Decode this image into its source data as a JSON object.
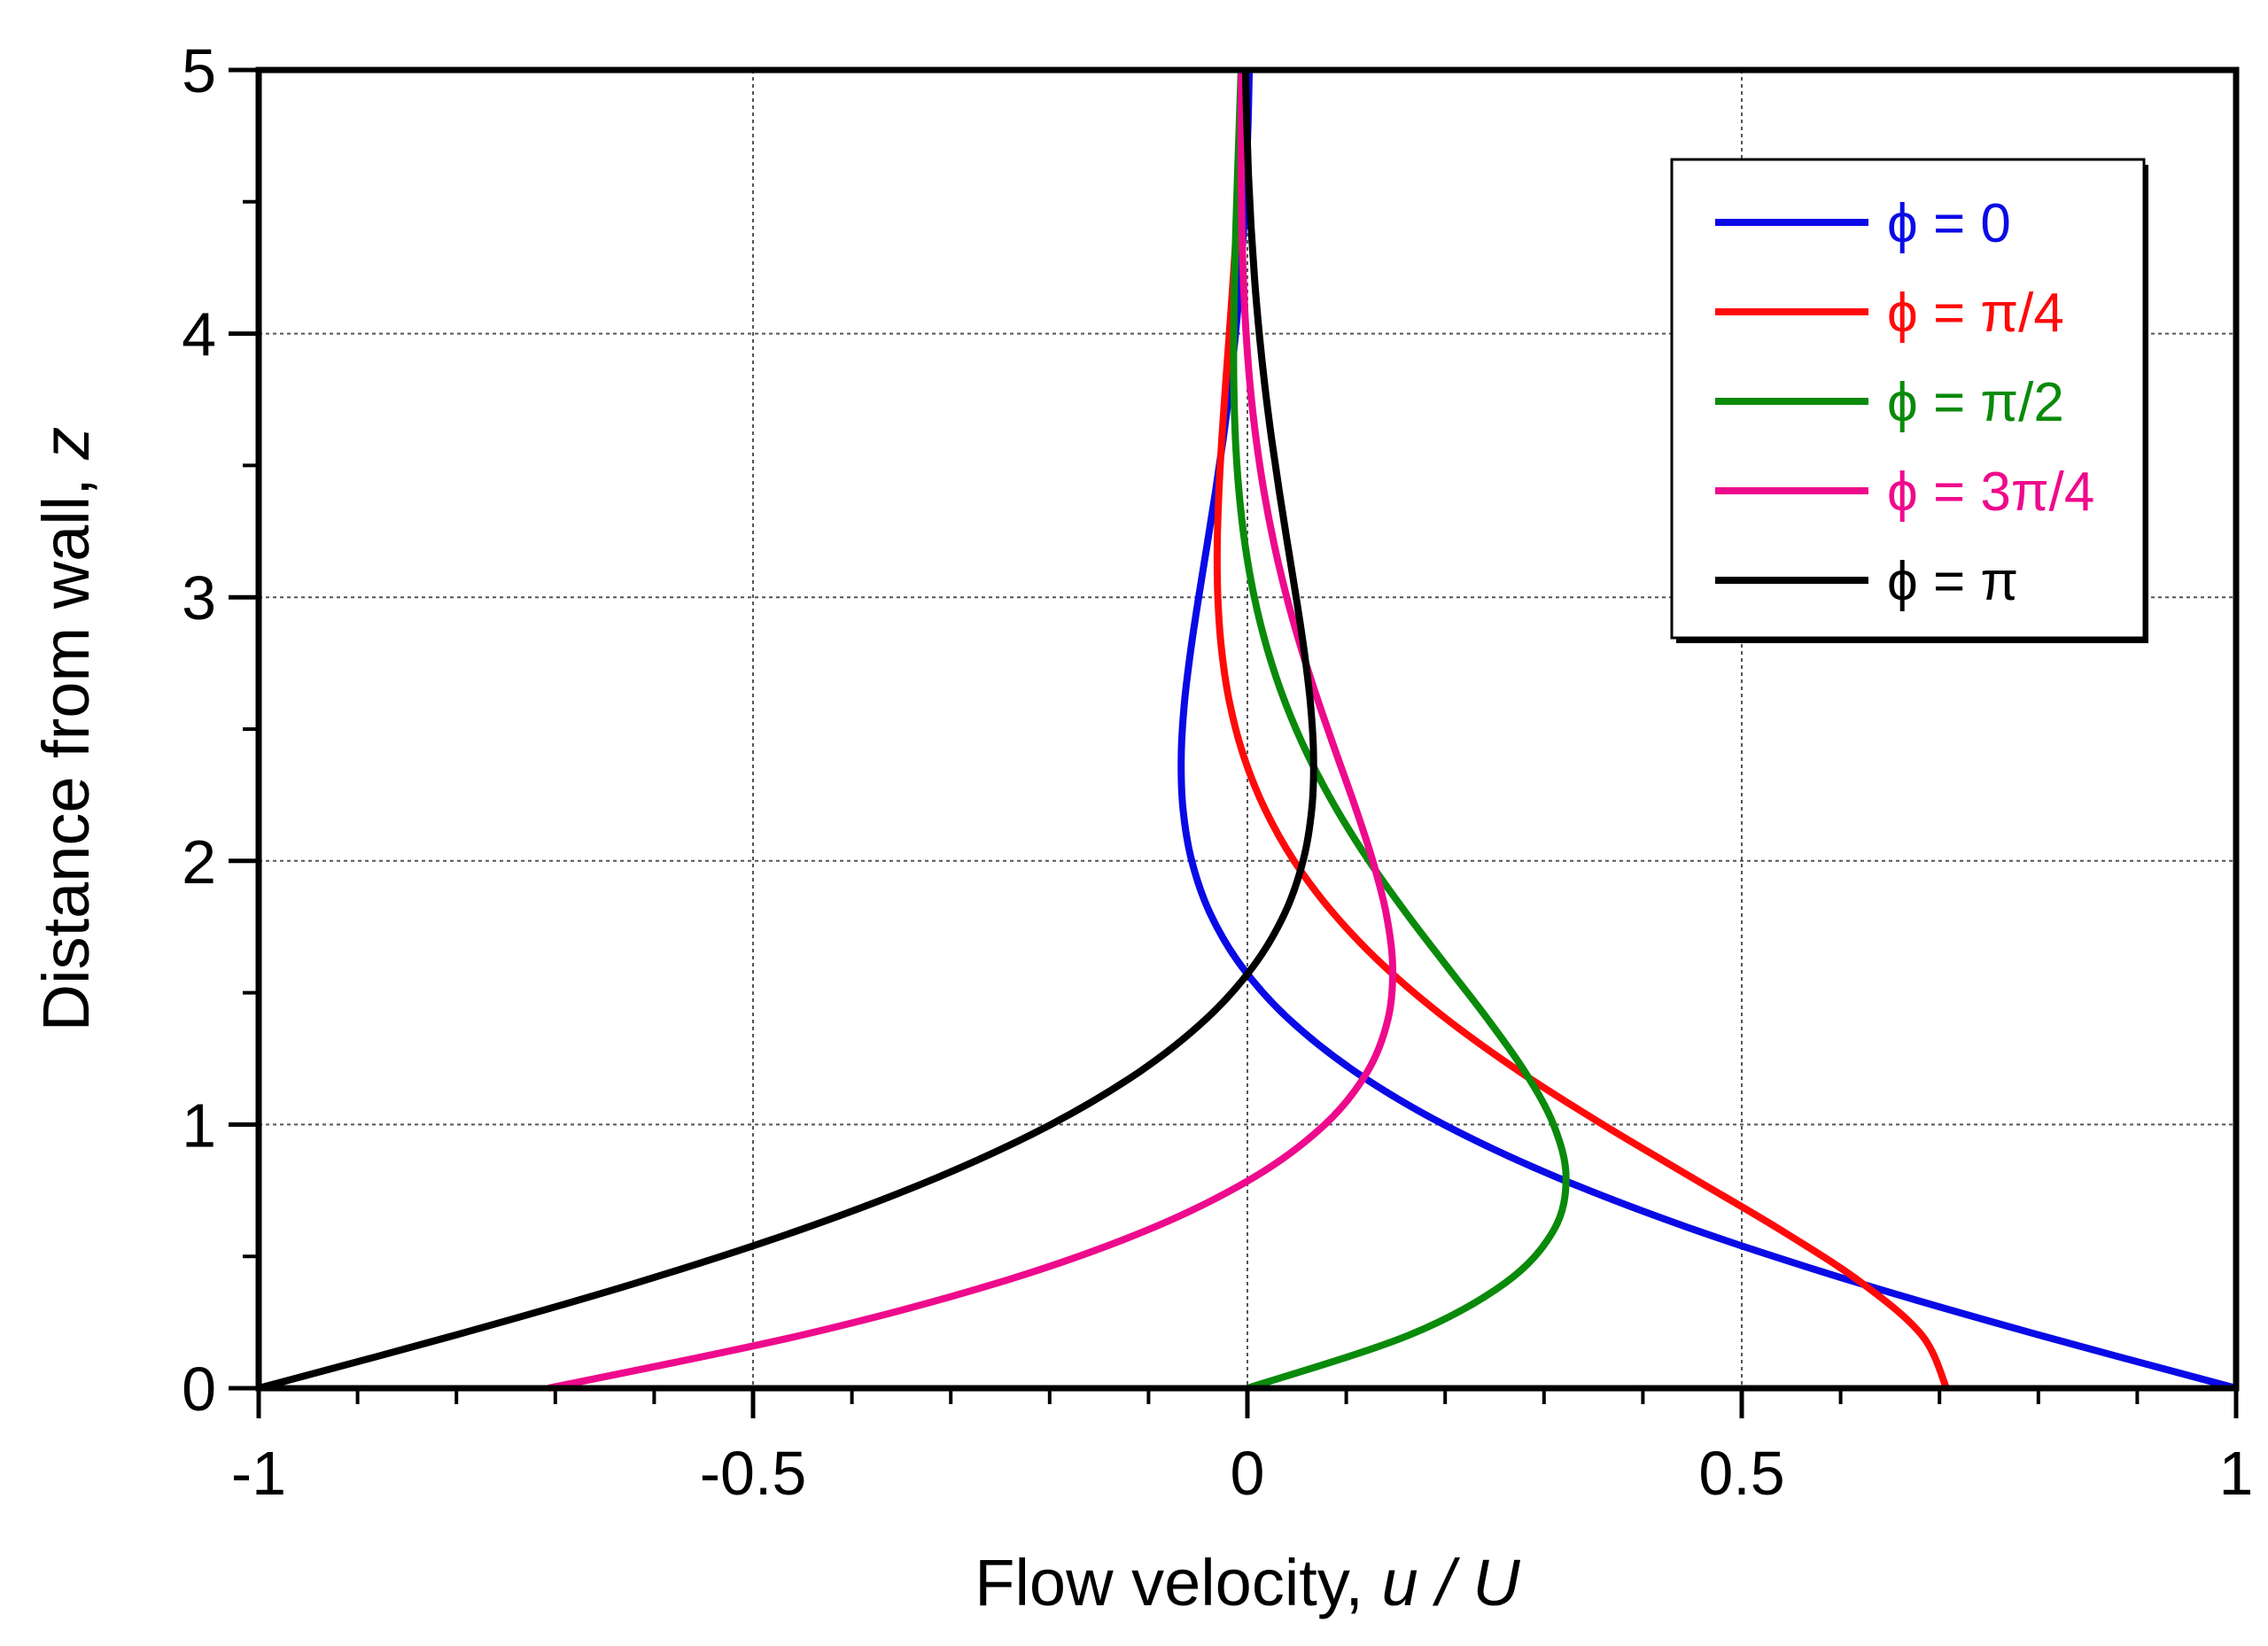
{
  "chart_data": {
    "type": "line",
    "title": "",
    "xlabel": "Flow velocity, ",
    "xlabel_italic": "u / U",
    "ylabel": "Distance from wall, ",
    "ylabel_italic": "z",
    "xlim": [
      -1,
      1
    ],
    "ylim": [
      0,
      5
    ],
    "xticks": [
      -1,
      -0.5,
      0,
      0.5,
      1
    ],
    "xtick_labels": [
      "-1",
      "-0.5",
      "0",
      "0.5",
      "1"
    ],
    "yticks": [
      0,
      1,
      2,
      3,
      4,
      5
    ],
    "ytick_labels": [
      "0",
      "1",
      "2",
      "3",
      "4",
      "5"
    ],
    "x_minor_step": 0.1,
    "y_minor_step": 0.5,
    "grid": true,
    "legend_position": "top-right",
    "z": [
      0,
      0.2,
      0.4,
      0.6,
      0.8,
      1.0,
      1.2,
      1.4,
      1.6,
      1.8,
      2.0,
      2.2,
      2.4,
      2.6,
      2.8,
      3.0,
      3.2,
      3.4,
      3.6,
      3.8,
      4.0,
      4.2,
      4.4,
      4.6,
      4.8,
      5.0
    ],
    "series": [
      {
        "name": "ϕ = 0",
        "color": "#0a0ae6",
        "u": [
          1,
          0.8024,
          0.6174,
          0.4529,
          0.313,
          0.1988,
          0.1092,
          0.0419,
          -0.0059,
          -0.0376,
          -0.0563,
          -0.0652,
          -0.0669,
          -0.0637,
          -0.0573,
          -0.0493,
          -0.0407,
          -0.0323,
          -0.0245,
          -0.0177,
          -0.012,
          -0.0074,
          -0.0038,
          -0.0011,
          0.0007,
          0.0019
        ]
      },
      {
        "name": "ϕ = π/4",
        "color": "#ff0a0a",
        "u": [
          0.7071,
          0.6824,
          0.6211,
          0.5394,
          0.4492,
          0.3595,
          0.2757,
          0.2015,
          0.1385,
          0.0873,
          0.0472,
          0.0173,
          -0.004,
          -0.018,
          -0.0261,
          -0.0299,
          -0.0305,
          -0.0288,
          -0.0259,
          -0.0222,
          -0.0183,
          -0.0145,
          -0.011,
          -0.0078,
          -0.0053,
          -0.0032
        ]
      },
      {
        "name": "ϕ = π/2",
        "color": "#0a8a0a",
        "u": [
          0,
          0.1627,
          0.261,
          0.3099,
          0.3223,
          0.3096,
          0.2807,
          0.243,
          0.2018,
          0.161,
          0.123,
          0.0896,
          0.0613,
          0.0383,
          0.0204,
          0.007,
          -0.0024,
          -0.0085,
          -0.0121,
          -0.0137,
          -0.0139,
          -0.0131,
          -0.0117,
          -0.01,
          -0.0082,
          -0.0064
        ]
      },
      {
        "name": "ϕ = 3π/4",
        "color": "#ee0a8c",
        "u": [
          -0.7071,
          -0.4523,
          -0.252,
          -0.1011,
          0.0066,
          0.0783,
          0.1213,
          0.1422,
          0.1469,
          0.1404,
          0.1268,
          0.1095,
          0.0906,
          0.0721,
          0.0549,
          0.0398,
          0.0271,
          0.0168,
          0.0088,
          0.0028,
          -0.0013,
          -0.004,
          -0.0056,
          -0.0063,
          -0.0063,
          -0.0059
        ]
      },
      {
        "name": "ϕ = π",
        "color": "#000000",
        "u": [
          -1,
          -0.8024,
          -0.6174,
          -0.4529,
          -0.313,
          -0.1988,
          -0.1092,
          -0.0419,
          0.0059,
          0.0376,
          0.0563,
          0.0652,
          0.0669,
          0.0637,
          0.0573,
          0.0493,
          0.0407,
          0.0323,
          0.0245,
          0.0177,
          0.012,
          0.0074,
          0.0038,
          0.0011,
          -0.0007,
          -0.0019
        ]
      }
    ]
  }
}
